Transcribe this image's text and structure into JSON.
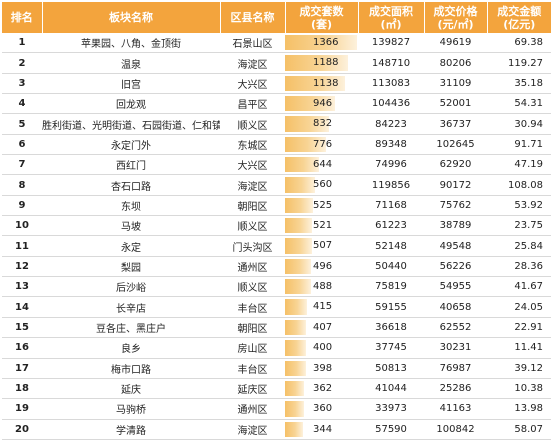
{
  "columns": [
    "排名",
    "板块名称",
    "区县名称",
    "成交套数\n(套)",
    "成交面积\n(㎡)",
    "成交价格\n(元/㎡)",
    "成交金额\n(亿元)"
  ],
  "bar_max": 1366,
  "rows": [
    {
      "rank": "1",
      "block": "苹果园、八角、金顶街",
      "district": "石景山区",
      "units": 1366,
      "area": "139827",
      "price": "49619",
      "amount": "69.38"
    },
    {
      "rank": "2",
      "block": "温泉",
      "district": "海淀区",
      "units": 1188,
      "area": "148710",
      "price": "80206",
      "amount": "119.27"
    },
    {
      "rank": "3",
      "block": "旧宫",
      "district": "大兴区",
      "units": 1138,
      "area": "113083",
      "price": "31109",
      "amount": "35.18"
    },
    {
      "rank": "4",
      "block": "回龙观",
      "district": "昌平区",
      "units": 946,
      "area": "104436",
      "price": "52001",
      "amount": "54.31"
    },
    {
      "rank": "5",
      "block": "胜利街道、光明街道、石园街道、仁和镇",
      "district": "顺义区",
      "units": 832,
      "area": "84223",
      "price": "36737",
      "amount": "30.94"
    },
    {
      "rank": "6",
      "block": "永定门外",
      "district": "东城区",
      "units": 776,
      "area": "89348",
      "price": "102645",
      "amount": "91.71"
    },
    {
      "rank": "7",
      "block": "西红门",
      "district": "大兴区",
      "units": 644,
      "area": "74996",
      "price": "62920",
      "amount": "47.19"
    },
    {
      "rank": "8",
      "block": "杏石口路",
      "district": "海淀区",
      "units": 560,
      "area": "119856",
      "price": "90172",
      "amount": "108.08"
    },
    {
      "rank": "9",
      "block": "东坝",
      "district": "朝阳区",
      "units": 525,
      "area": "71168",
      "price": "75762",
      "amount": "53.92"
    },
    {
      "rank": "10",
      "block": "马坡",
      "district": "顺义区",
      "units": 521,
      "area": "61223",
      "price": "38789",
      "amount": "23.75"
    },
    {
      "rank": "11",
      "block": "永定",
      "district": "门头沟区",
      "units": 507,
      "area": "52148",
      "price": "49548",
      "amount": "25.84"
    },
    {
      "rank": "12",
      "block": "梨园",
      "district": "通州区",
      "units": 496,
      "area": "50440",
      "price": "56226",
      "amount": "28.36"
    },
    {
      "rank": "13",
      "block": "后沙峪",
      "district": "顺义区",
      "units": 488,
      "area": "75819",
      "price": "54955",
      "amount": "41.67"
    },
    {
      "rank": "14",
      "block": "长辛店",
      "district": "丰台区",
      "units": 415,
      "area": "59155",
      "price": "40658",
      "amount": "24.05"
    },
    {
      "rank": "15",
      "block": "豆各庄、黑庄户",
      "district": "朝阳区",
      "units": 407,
      "area": "36618",
      "price": "62552",
      "amount": "22.91"
    },
    {
      "rank": "16",
      "block": "良乡",
      "district": "房山区",
      "units": 400,
      "area": "37745",
      "price": "30231",
      "amount": "11.41"
    },
    {
      "rank": "17",
      "block": "梅市口路",
      "district": "丰台区",
      "units": 398,
      "area": "50813",
      "price": "76987",
      "amount": "39.12"
    },
    {
      "rank": "18",
      "block": "延庆",
      "district": "延庆区",
      "units": 362,
      "area": "41044",
      "price": "25286",
      "amount": "10.38"
    },
    {
      "rank": "19",
      "block": "马驹桥",
      "district": "通州区",
      "units": 360,
      "area": "33973",
      "price": "41163",
      "amount": "13.98"
    },
    {
      "rank": "20",
      "block": "学清路",
      "district": "海淀区",
      "units": 344,
      "area": "57590",
      "price": "100842",
      "amount": "58.07"
    }
  ]
}
